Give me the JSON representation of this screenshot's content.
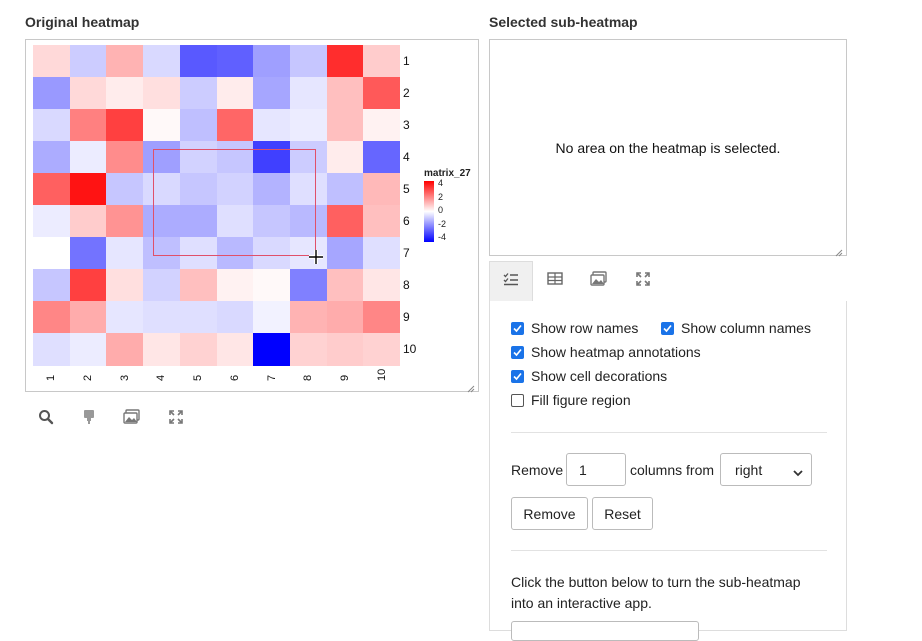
{
  "left": {
    "title": "Original heatmap"
  },
  "right": {
    "title": "Selected sub-heatmap",
    "empty_message": "No area on the heatmap is selected."
  },
  "heatmap": {
    "row_labels": [
      "1",
      "2",
      "3",
      "4",
      "5",
      "6",
      "7",
      "8",
      "9",
      "10"
    ],
    "col_labels": [
      "1",
      "2",
      "3",
      "4",
      "5",
      "6",
      "7",
      "8",
      "9",
      "10"
    ],
    "values": [
      [
        0.6,
        -0.8,
        1.2,
        -0.6,
        -2.6,
        -2.5,
        -1.5,
        -0.9,
        3.3,
        0.8
      ],
      [
        -1.6,
        0.6,
        0.3,
        0.5,
        -0.8,
        0.3,
        -1.4,
        -0.4,
        1.0,
        2.6
      ],
      [
        -0.6,
        2.0,
        3.0,
        0.1,
        -1.0,
        2.4,
        -0.4,
        -0.3,
        1.0,
        0.2
      ],
      [
        -1.3,
        -0.3,
        1.8,
        -1.5,
        -0.7,
        -0.9,
        -3.0,
        -0.8,
        0.3,
        -2.4
      ],
      [
        2.5,
        3.7,
        -0.9,
        -0.6,
        -0.9,
        -0.7,
        -1.2,
        -0.5,
        -1.0,
        1.1
      ],
      [
        -0.3,
        0.8,
        1.7,
        -1.3,
        -1.3,
        -0.5,
        -0.9,
        -1.1,
        2.5,
        1.0
      ],
      [
        0.0,
        -2.2,
        -0.4,
        -1.0,
        -0.5,
        -1.1,
        -0.6,
        -0.4,
        -1.4,
        -0.5
      ],
      [
        -0.9,
        3.0,
        0.5,
        -0.7,
        1.0,
        0.2,
        0.1,
        -2.0,
        1.0,
        0.4
      ],
      [
        1.9,
        1.3,
        -0.4,
        -0.5,
        -0.5,
        -0.6,
        -0.2,
        1.2,
        1.3,
        1.9
      ],
      [
        -0.5,
        -0.3,
        1.3,
        0.4,
        0.7,
        0.4,
        -4.0,
        0.7,
        0.8,
        0.7
      ]
    ],
    "legend": {
      "title": "matrix_27",
      "ticks": [
        "4",
        "2",
        "0",
        "-2",
        "-4"
      ]
    },
    "colors": {
      "high": "#ff0000",
      "mid": "#ffffff",
      "low": "#0000ff"
    }
  },
  "left_toolbar": {
    "icons": [
      "search-icon",
      "brush-icon",
      "image-icon",
      "fullscreen-icon"
    ]
  },
  "tabs": {
    "icons": [
      "checklist-icon",
      "table-icon",
      "image-icon",
      "fullscreen-icon"
    ],
    "active": 0
  },
  "settings": {
    "show_row_names": {
      "label": "Show row names",
      "checked": true
    },
    "show_column_names": {
      "label": "Show column names",
      "checked": true
    },
    "show_heatmap_annotations": {
      "label": "Show heatmap annotations",
      "checked": true
    },
    "show_cell_decorations": {
      "label": "Show cell decorations",
      "checked": true
    },
    "fill_figure_region": {
      "label": "Fill figure region",
      "checked": false
    },
    "remove_label": "Remove",
    "remove_count": "1",
    "columns_from_label": "columns from",
    "direction": "right",
    "remove_button": "Remove",
    "reset_button": "Reset",
    "interactive_note": "Click the button below to turn the sub-heatmap into an interactive app."
  }
}
